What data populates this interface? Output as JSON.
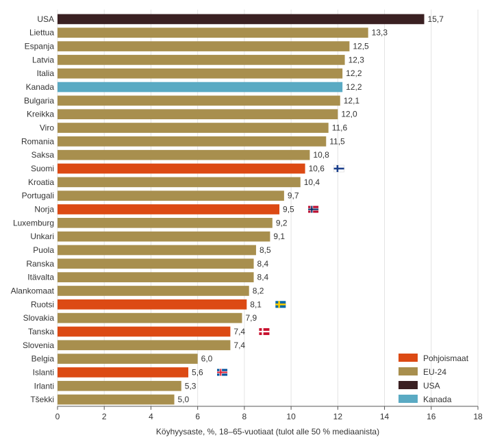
{
  "chart_data": {
    "type": "bar",
    "orientation": "horizontal",
    "xlabel": "Köyhyysaste, %, 18–65-vuotiaat (tulot alle 50 % mediaanista)",
    "xlim": [
      0,
      18
    ],
    "xticks": [
      "0",
      "2",
      "4",
      "6",
      "8",
      "10",
      "12",
      "14",
      "16",
      "18"
    ],
    "grid": "vertical",
    "legend_position": "bottom-right",
    "colors": {
      "Pohjoismaat": "#dc4a14",
      "EU-24": "#a88f4e",
      "USA": "#3a2022",
      "Kanada": "#5aaac3"
    },
    "legend": [
      {
        "label": "Pohjoismaat",
        "group": "Pohjoismaat"
      },
      {
        "label": "EU-24",
        "group": "EU-24"
      },
      {
        "label": "USA",
        "group": "USA"
      },
      {
        "label": "Kanada",
        "group": "Kanada"
      }
    ],
    "bars": [
      {
        "category": "USA",
        "value": 15.7,
        "label": "15,7",
        "group": "USA"
      },
      {
        "category": "Liettua",
        "value": 13.3,
        "label": "13,3",
        "group": "EU-24"
      },
      {
        "category": "Espanja",
        "value": 12.5,
        "label": "12,5",
        "group": "EU-24"
      },
      {
        "category": "Latvia",
        "value": 12.3,
        "label": "12,3",
        "group": "EU-24"
      },
      {
        "category": "Italia",
        "value": 12.2,
        "label": "12,2",
        "group": "EU-24"
      },
      {
        "category": "Kanada",
        "value": 12.2,
        "label": "12,2",
        "group": "Kanada"
      },
      {
        "category": "Bulgaria",
        "value": 12.1,
        "label": "12,1",
        "group": "EU-24"
      },
      {
        "category": "Kreikka",
        "value": 12.0,
        "label": "12,0",
        "group": "EU-24"
      },
      {
        "category": "Viro",
        "value": 11.6,
        "label": "11,6",
        "group": "EU-24"
      },
      {
        "category": "Romania",
        "value": 11.5,
        "label": "11,5",
        "group": "EU-24"
      },
      {
        "category": "Saksa",
        "value": 10.8,
        "label": "10,8",
        "group": "EU-24"
      },
      {
        "category": "Suomi",
        "value": 10.6,
        "label": "10,6",
        "group": "Pohjoismaat",
        "flag": "finland-flag-icon"
      },
      {
        "category": "Kroatia",
        "value": 10.4,
        "label": "10,4",
        "group": "EU-24"
      },
      {
        "category": "Portugali",
        "value": 9.7,
        "label": "9,7",
        "group": "EU-24"
      },
      {
        "category": "Norja",
        "value": 9.5,
        "label": "9,5",
        "group": "Pohjoismaat",
        "flag": "norway-flag-icon"
      },
      {
        "category": "Luxemburg",
        "value": 9.2,
        "label": "9,2",
        "group": "EU-24"
      },
      {
        "category": "Unkari",
        "value": 9.1,
        "label": "9,1",
        "group": "EU-24"
      },
      {
        "category": "Puola",
        "value": 8.5,
        "label": "8,5",
        "group": "EU-24"
      },
      {
        "category": "Ranska",
        "value": 8.4,
        "label": "8,4",
        "group": "EU-24"
      },
      {
        "category": "Itävalta",
        "value": 8.4,
        "label": "8,4",
        "group": "EU-24"
      },
      {
        "category": "Alankomaat",
        "value": 8.2,
        "label": "8,2",
        "group": "EU-24"
      },
      {
        "category": "Ruotsi",
        "value": 8.1,
        "label": "8,1",
        "group": "Pohjoismaat",
        "flag": "sweden-flag-icon"
      },
      {
        "category": "Slovakia",
        "value": 7.9,
        "label": "7,9",
        "group": "EU-24"
      },
      {
        "category": "Tanska",
        "value": 7.4,
        "label": "7,4",
        "group": "Pohjoismaat",
        "flag": "denmark-flag-icon"
      },
      {
        "category": "Slovenia",
        "value": 7.4,
        "label": "7,4",
        "group": "EU-24"
      },
      {
        "category": "Belgia",
        "value": 6.0,
        "label": "6,0",
        "group": "EU-24"
      },
      {
        "category": "Islanti",
        "value": 5.6,
        "label": "5,6",
        "group": "Pohjoismaat",
        "flag": "iceland-flag-icon"
      },
      {
        "category": "Irlanti",
        "value": 5.3,
        "label": "5,3",
        "group": "EU-24"
      },
      {
        "category": "Tšekki",
        "value": 5.0,
        "label": "5,0",
        "group": "EU-24"
      }
    ]
  }
}
